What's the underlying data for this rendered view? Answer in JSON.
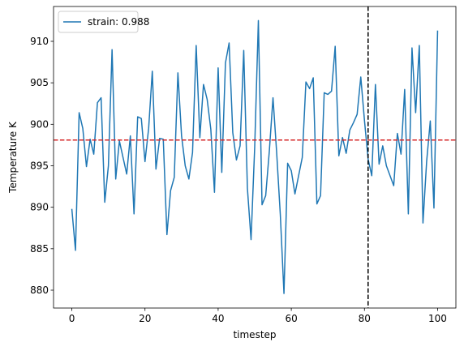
{
  "chart_data": {
    "type": "line",
    "xlabel": "timestep",
    "ylabel": "Temperature K",
    "x": [
      0,
      1,
      2,
      3,
      4,
      5,
      6,
      7,
      8,
      9,
      10,
      11,
      12,
      13,
      14,
      15,
      16,
      17,
      18,
      19,
      20,
      21,
      22,
      23,
      24,
      25,
      26,
      27,
      28,
      29,
      30,
      31,
      32,
      33,
      34,
      35,
      36,
      37,
      38,
      39,
      40,
      41,
      42,
      43,
      44,
      45,
      46,
      47,
      48,
      49,
      50,
      51,
      52,
      53,
      54,
      55,
      56,
      57,
      58,
      59,
      60,
      61,
      62,
      63,
      64,
      65,
      66,
      67,
      68,
      69,
      70,
      71,
      72,
      73,
      74,
      75,
      76,
      77,
      78,
      79,
      80,
      81,
      82,
      83,
      84,
      85,
      86,
      87,
      88,
      89,
      90,
      91,
      92,
      93,
      94,
      95,
      96,
      97,
      98,
      99,
      100
    ],
    "series": [
      {
        "name": "strain: 0.988",
        "color": "#1f77b4",
        "values": [
          889.8,
          884.8,
          901.4,
          899.5,
          894.9,
          898.2,
          896.4,
          902.6,
          903.2,
          890.6,
          895,
          909,
          893.4,
          898,
          896,
          894,
          898.6,
          889.2,
          900.9,
          900.7,
          895.5,
          899.5,
          906.4,
          894.6,
          898.3,
          898.2,
          886.7,
          892,
          893.6,
          906.2,
          898.6,
          895,
          893.4,
          896.6,
          909.5,
          898.4,
          904.8,
          903,
          899.4,
          891.8,
          906.8,
          894.2,
          907.4,
          909.8,
          899,
          895.7,
          897.4,
          908.9,
          892.3,
          886.1,
          897.3,
          912.5,
          890.3,
          891.4,
          896.8,
          903.2,
          896.6,
          889.1,
          879.6,
          895.3,
          894.4,
          891.6,
          893.8,
          896,
          905.1,
          904.3,
          905.6,
          890.4,
          891.4,
          903.8,
          903.6,
          904,
          909.4,
          896.2,
          898.4,
          896.5,
          899.3,
          900.2,
          901.2,
          905.7,
          900.5,
          895.8,
          893.8,
          904.8,
          895.2,
          897.4,
          895,
          893.8,
          892.6,
          898.9,
          896.4,
          904.2,
          889.2,
          909.2,
          901.4,
          909.5,
          888.1,
          895.5,
          900.4,
          889.9,
          911.3
        ]
      }
    ],
    "hline": {
      "value": 898.1,
      "color": "#d62728"
    },
    "vline": {
      "value": 81,
      "color": "#000000"
    },
    "xlim": [
      -5,
      105
    ],
    "ylim": [
      877.85,
      914.2
    ],
    "xticks": [
      0,
      20,
      40,
      60,
      80,
      100
    ],
    "yticks": [
      880,
      885,
      890,
      895,
      900,
      905,
      910
    ],
    "legend": "upper left",
    "grid": false
  }
}
